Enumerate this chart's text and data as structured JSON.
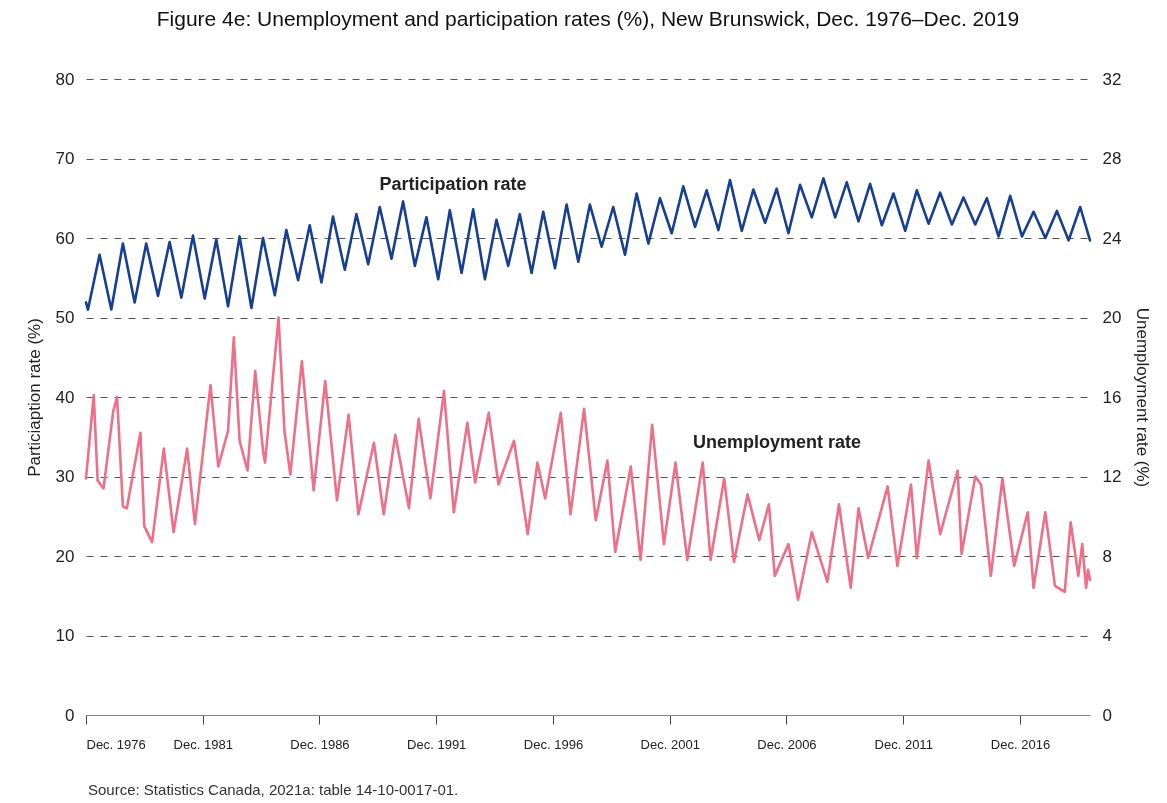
{
  "chart_data": {
    "type": "line",
    "title": "Figure 4e: Unemployment and participation rates (%), New Brunswick, Dec. 1976–Dec. 2019",
    "ylabel": "Particiaption rate (%)",
    "y2label": "Unemployment rate (%)",
    "annotations": [
      "Source: Statistics Canada, 2021a: table 14-10-0017-01."
    ],
    "xlim": [
      "1976-12",
      "2019-12"
    ],
    "xticks": [
      {
        "value": "1976-12",
        "label": "Dec. 1976"
      },
      {
        "value": "1981-12",
        "label": "Dec. 1981"
      },
      {
        "value": "1986-12",
        "label": "Dec. 1986"
      },
      {
        "value": "1991-12",
        "label": "Dec. 1991"
      },
      {
        "value": "1996-12",
        "label": "Dec. 1996"
      },
      {
        "value": "2001-12",
        "label": "Dec. 2001"
      },
      {
        "value": "2006-12",
        "label": "Dec. 2006"
      },
      {
        "value": "2011-12",
        "label": "Dec. 2011"
      },
      {
        "value": "2016-12",
        "label": "Dec. 2016"
      }
    ],
    "ylim": [
      0,
      80
    ],
    "yticks": [
      0,
      10,
      20,
      30,
      40,
      50,
      60,
      70,
      80
    ],
    "y2lim": [
      0,
      32
    ],
    "y2ticks": [
      0,
      4,
      8,
      12,
      16,
      20,
      24,
      28,
      32
    ],
    "grid": "y",
    "series": [
      {
        "name": "Participation rate",
        "color": "#173f91",
        "x": [
          "1976-12",
          "1977-01",
          "1977-07",
          "1978-01",
          "1978-07",
          "1979-01",
          "1979-07",
          "1980-01",
          "1980-07",
          "1981-01",
          "1981-07",
          "1982-01",
          "1982-07",
          "1983-01",
          "1983-07",
          "1984-01",
          "1984-07",
          "1985-01",
          "1985-07",
          "1986-01",
          "1986-07",
          "1987-01",
          "1987-07",
          "1988-01",
          "1988-07",
          "1989-01",
          "1989-07",
          "1990-01",
          "1990-07",
          "1991-01",
          "1991-07",
          "1992-01",
          "1992-07",
          "1993-01",
          "1993-07",
          "1994-01",
          "1994-07",
          "1995-01",
          "1995-07",
          "1996-01",
          "1996-07",
          "1997-01",
          "1997-07",
          "1998-01",
          "1998-07",
          "1999-01",
          "1999-07",
          "2000-01",
          "2000-07",
          "2001-01",
          "2001-07",
          "2002-01",
          "2002-07",
          "2003-01",
          "2003-07",
          "2004-01",
          "2004-07",
          "2005-01",
          "2005-07",
          "2006-01",
          "2006-07",
          "2007-01",
          "2007-07",
          "2008-01",
          "2008-07",
          "2009-01",
          "2009-07",
          "2010-01",
          "2010-07",
          "2011-01",
          "2011-07",
          "2012-01",
          "2012-07",
          "2013-01",
          "2013-07",
          "2014-01",
          "2014-07",
          "2015-01",
          "2015-07",
          "2016-01",
          "2016-07",
          "2017-01",
          "2017-07",
          "2018-01",
          "2018-07",
          "2019-01",
          "2019-07",
          "2019-12"
        ],
        "values": [
          51.9,
          51.0,
          57.9,
          51.0,
          59.3,
          51.9,
          59.3,
          52.7,
          59.5,
          52.5,
          60.3,
          52.4,
          59.8,
          51.4,
          60.2,
          51.2,
          60.0,
          52.8,
          61.0,
          54.7,
          61.6,
          54.4,
          62.7,
          56.0,
          63.0,
          56.7,
          63.9,
          57.4,
          64.6,
          56.5,
          62.6,
          54.8,
          63.5,
          55.6,
          63.6,
          54.8,
          62.3,
          56.5,
          63.0,
          55.6,
          63.3,
          56.2,
          64.2,
          57.0,
          64.2,
          58.9,
          63.9,
          57.9,
          65.6,
          59.3,
          65.0,
          60.6,
          66.5,
          61.4,
          66.0,
          61.0,
          67.3,
          60.9,
          66.1,
          61.9,
          66.2,
          60.6,
          66.7,
          62.6,
          67.5,
          62.6,
          67.0,
          62.1,
          66.8,
          61.6,
          65.6,
          60.9,
          66.0,
          61.8,
          65.7,
          61.7,
          65.1,
          61.7,
          65.0,
          60.2,
          65.3,
          60.2,
          63.3,
          60.0,
          63.4,
          59.7,
          63.9,
          59.7
        ]
      },
      {
        "name": "Unemployment  rate",
        "color": "#ee6f87",
        "axis": "y2",
        "x": [
          "1976-12",
          "1977-04",
          "1977-06",
          "1977-09",
          "1978-02",
          "1978-04",
          "1978-07",
          "1978-09",
          "1979-04",
          "1979-06",
          "1979-10",
          "1980-04",
          "1980-09",
          "1981-04",
          "1981-08",
          "1982-04",
          "1982-08",
          "1983-01",
          "1983-04",
          "1983-07",
          "1983-11",
          "1984-03",
          "1984-07",
          "1984-08",
          "1985-03",
          "1985-06",
          "1985-09",
          "1986-03",
          "1986-09",
          "1987-03",
          "1987-09",
          "1988-03",
          "1988-08",
          "1989-04",
          "1989-09",
          "1990-03",
          "1990-10",
          "1991-03",
          "1991-09",
          "1992-04",
          "1992-09",
          "1993-04",
          "1993-08",
          "1994-03",
          "1994-08",
          "1995-04",
          "1995-11",
          "1996-04",
          "1996-08",
          "1997-04",
          "1997-09",
          "1998-04",
          "1998-10",
          "1999-04",
          "1999-08",
          "2000-04",
          "2000-09",
          "2001-03",
          "2001-09",
          "2002-03",
          "2002-09",
          "2003-05",
          "2003-09",
          "2004-04",
          "2004-09",
          "2005-04",
          "2005-10",
          "2006-03",
          "2006-06",
          "2007-01",
          "2007-06",
          "2008-01",
          "2008-09",
          "2009-03",
          "2009-09",
          "2010-01",
          "2010-06",
          "2011-04",
          "2011-09",
          "2012-04",
          "2012-07",
          "2013-01",
          "2013-07",
          "2014-04",
          "2014-06",
          "2015-01",
          "2015-04",
          "2015-09",
          "2016-03",
          "2016-09",
          "2017-04",
          "2017-07",
          "2018-01",
          "2018-06",
          "2018-11",
          "2019-02",
          "2019-06",
          "2019-08",
          "2019-10",
          "2019-11",
          "2019-12"
        ],
        "values": [
          11.9,
          16.1,
          11.8,
          11.4,
          15.3,
          16.0,
          10.5,
          10.4,
          14.2,
          9.5,
          8.7,
          13.4,
          9.2,
          13.4,
          9.6,
          16.6,
          12.5,
          14.3,
          19.0,
          13.8,
          12.3,
          17.3,
          13.3,
          12.7,
          20.0,
          14.3,
          12.1,
          17.8,
          11.3,
          16.8,
          10.8,
          15.1,
          10.1,
          13.7,
          10.1,
          14.1,
          10.4,
          14.9,
          10.9,
          16.3,
          10.2,
          14.7,
          11.7,
          15.2,
          11.6,
          13.8,
          9.1,
          12.7,
          10.9,
          15.2,
          10.1,
          15.4,
          9.8,
          12.8,
          8.2,
          12.5,
          7.8,
          14.6,
          8.6,
          12.7,
          7.8,
          12.7,
          7.8,
          11.9,
          7.7,
          11.1,
          8.8,
          10.6,
          7.0,
          8.6,
          5.8,
          9.2,
          6.7,
          10.6,
          6.4,
          10.4,
          7.9,
          11.5,
          7.5,
          11.6,
          7.9,
          12.8,
          9.1,
          12.3,
          8.1,
          12.0,
          11.6,
          7.0,
          11.9,
          7.5,
          10.2,
          6.4,
          10.2,
          6.5,
          6.2,
          9.7,
          7.0,
          8.6,
          6.4,
          7.3,
          6.8
        ]
      }
    ]
  }
}
